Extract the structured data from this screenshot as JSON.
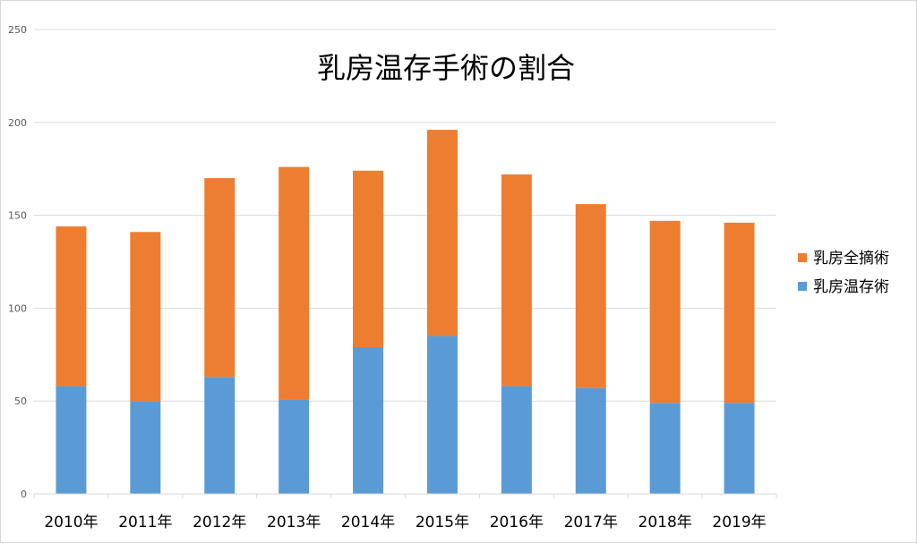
{
  "chart_data": {
    "type": "bar",
    "stacked": true,
    "title": "乳房温存手術の割合",
    "xlabel": "",
    "ylabel": "",
    "categories": [
      "2010年",
      "2011年",
      "2012年",
      "2013年",
      "2014年",
      "2015年",
      "2016年",
      "2017年",
      "2018年",
      "2019年"
    ],
    "series": [
      {
        "name": "乳房温存術",
        "color": "#5b9bd5",
        "values": [
          58,
          50,
          63,
          51,
          79,
          85,
          58,
          57,
          49,
          49
        ]
      },
      {
        "name": "乳房全摘術",
        "color": "#ed7d31",
        "values": [
          86,
          91,
          107,
          125,
          95,
          111,
          114,
          99,
          98,
          97
        ]
      }
    ],
    "ylim": [
      0,
      250
    ],
    "yticks": [
      0,
      50,
      100,
      150,
      200,
      250
    ],
    "grid": true,
    "legend_position": "right",
    "legend_order": [
      "乳房全摘術",
      "乳房温存術"
    ]
  }
}
